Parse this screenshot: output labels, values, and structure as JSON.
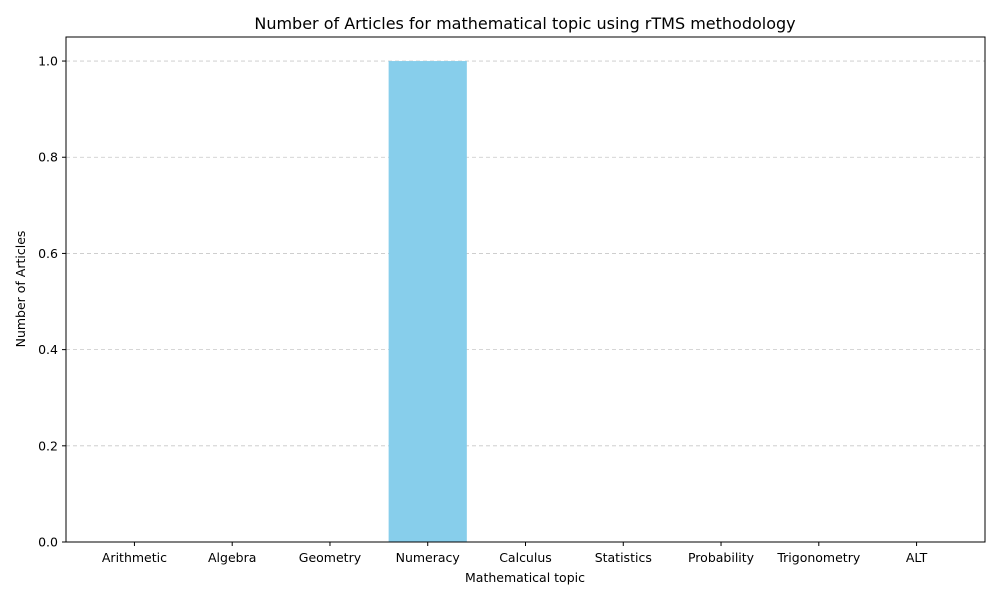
{
  "chart_data": {
    "type": "bar",
    "title": "Number of Articles for mathematical topic using rTMS methodology",
    "xlabel": "Mathematical topic",
    "ylabel": "Number of Articles",
    "categories": [
      "Arithmetic",
      "Algebra",
      "Geometry",
      "Numeracy",
      "Calculus",
      "Statistics",
      "Probability",
      "Trigonometry",
      "ALT"
    ],
    "values": [
      0,
      0,
      0,
      1,
      0,
      0,
      0,
      0,
      0
    ],
    "ylim": [
      0,
      1.05
    ],
    "yticks": [
      0.0,
      0.2,
      0.4,
      0.6,
      0.8,
      1.0
    ],
    "ytick_labels": [
      "0.0",
      "0.2",
      "0.4",
      "0.6",
      "0.8",
      "1.0"
    ],
    "bar_color": "#87ceeb",
    "grid": "y-dashed",
    "grid_color": "#c8c8c8"
  }
}
